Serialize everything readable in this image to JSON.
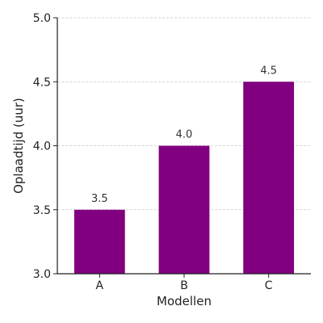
{
  "chart_data": {
    "type": "bar",
    "categories": [
      "A",
      "B",
      "C"
    ],
    "values": [
      3.5,
      4.0,
      4.5
    ],
    "data_labels": [
      "3.5",
      "4.0",
      "4.5"
    ],
    "title": "",
    "xlabel": "Modellen",
    "ylabel": "Oplaadtijd (uur)",
    "ylim": [
      3.0,
      5.0
    ],
    "yticks": [
      3.0,
      3.5,
      4.0,
      4.5,
      5.0
    ],
    "ytick_labels": [
      "3.0",
      "3.5",
      "4.0",
      "4.5",
      "5.0"
    ],
    "grid": "horizontal dashed",
    "bar_color": "#800080",
    "grid_color": "#c8c8c8",
    "axis_color": "#222222"
  }
}
